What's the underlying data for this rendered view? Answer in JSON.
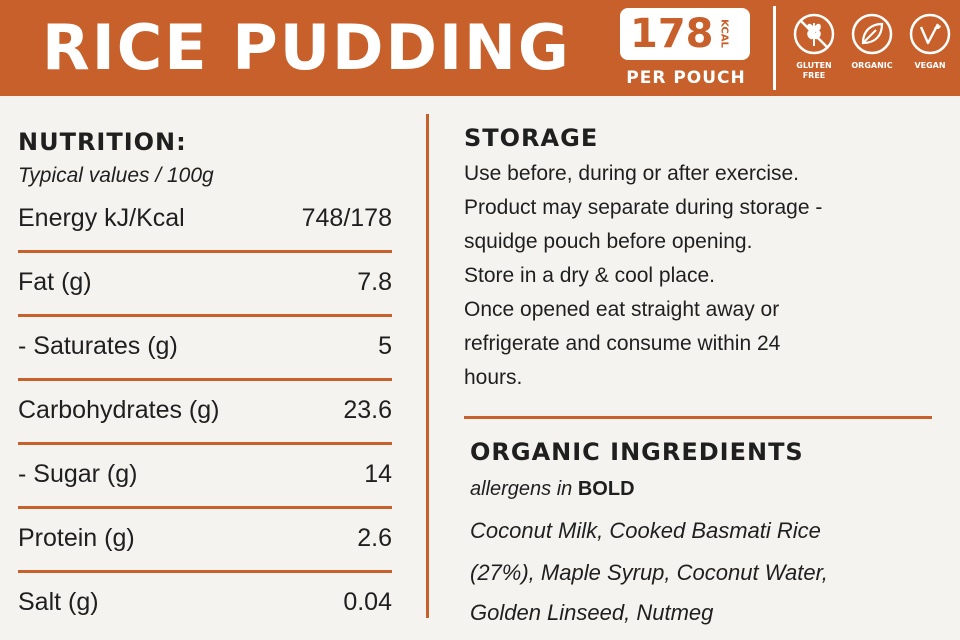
{
  "header": {
    "title": "RICE PUDDING",
    "kcal_value": "178",
    "kcal_unit": "KCAL",
    "per_pouch": "PER POUCH",
    "badges": [
      {
        "label": "GLUTEN FREE",
        "icon": "wheat-crossed-icon"
      },
      {
        "label": "ORGANIC",
        "icon": "leaf-icon"
      },
      {
        "label": "VEGAN",
        "icon": "vegan-v-icon"
      }
    ],
    "color_brand": "#c8602c"
  },
  "nutrition": {
    "title": "NUTRITION:",
    "subtitle": "Typical values / 100g",
    "rows": [
      {
        "label": "Energy kJ/Kcal",
        "value": "748/178"
      },
      {
        "label": "Fat (g)",
        "value": "7.8"
      },
      {
        "label": "- Saturates (g)",
        "value": "5"
      },
      {
        "label": "Carbohydrates (g)",
        "value": "23.6"
      },
      {
        "label": "- Sugar (g)",
        "value": "14"
      },
      {
        "label": "Protein (g)",
        "value": "2.6"
      },
      {
        "label": "Salt (g)",
        "value": "0.04"
      }
    ]
  },
  "storage": {
    "title": "STORAGE",
    "lines": [
      "Use before, during or after exercise.",
      "Product may separate during storage -",
      "squidge pouch before opening.",
      "Store in a dry & cool place.",
      "Once opened eat straight away or",
      "refrigerate and consume within 24",
      "hours."
    ]
  },
  "ingredients": {
    "title": "ORGANIC INGREDIENTS",
    "allergens_prefix": "allergens in",
    "allergens_bold": "BOLD",
    "lines": [
      "Coconut Milk, Cooked Basmati Rice",
      "(27%), Maple Syrup, Coconut Water,",
      "Golden Linseed, Nutmeg"
    ]
  }
}
